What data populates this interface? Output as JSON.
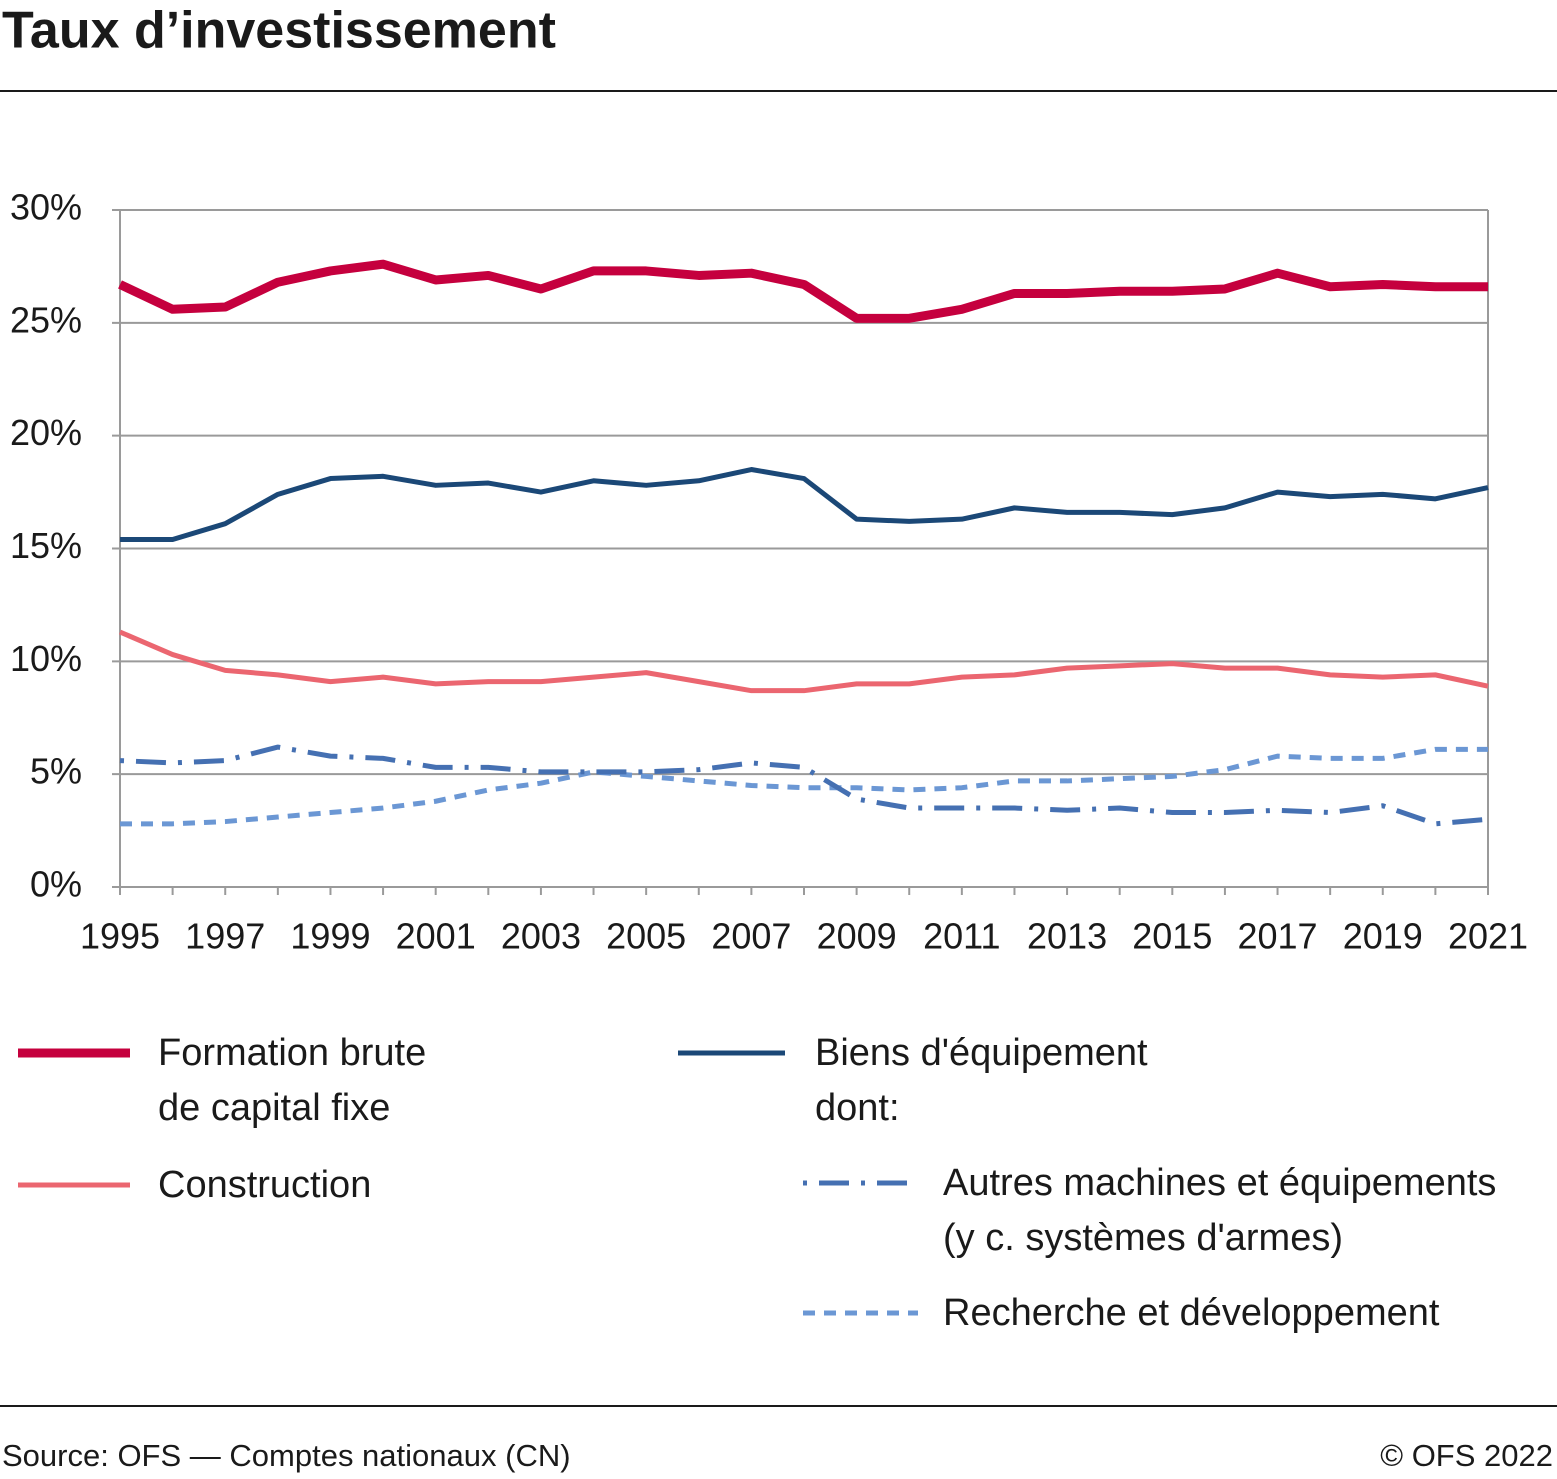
{
  "title": "Taux d’investissement",
  "source": "Source: OFS — Comptes nationaux (CN)",
  "copyright": "© OFS 2022",
  "chart_data": {
    "type": "line",
    "x": [
      1995,
      1996,
      1997,
      1998,
      1999,
      2000,
      2001,
      2002,
      2003,
      2004,
      2005,
      2006,
      2007,
      2008,
      2009,
      2010,
      2011,
      2012,
      2013,
      2014,
      2015,
      2016,
      2017,
      2018,
      2019,
      2020,
      2021
    ],
    "xlim": [
      1995,
      2021
    ],
    "xticks": [
      1995,
      1997,
      1999,
      2001,
      2003,
      2005,
      2007,
      2009,
      2011,
      2013,
      2015,
      2017,
      2019,
      2021
    ],
    "ylim": [
      0,
      30
    ],
    "yticks": [
      {
        "value": 0,
        "label": "0%"
      },
      {
        "value": 5,
        "label": "5%"
      },
      {
        "value": 10,
        "label": "10%"
      },
      {
        "value": 15,
        "label": "15%"
      },
      {
        "value": 20,
        "label": "20%"
      },
      {
        "value": 25,
        "label": "25%"
      },
      {
        "value": 30,
        "label": "30%"
      }
    ],
    "grid": true,
    "series": [
      {
        "name": "Formation brute\nde capital fixe",
        "color": "#c5003e",
        "linestyle": "solid",
        "values": [
          26.7,
          25.6,
          25.7,
          26.8,
          27.3,
          27.6,
          26.9,
          27.1,
          26.5,
          27.3,
          27.3,
          27.1,
          27.2,
          26.7,
          25.2,
          25.2,
          25.6,
          26.3,
          26.3,
          26.4,
          26.4,
          26.5,
          27.2,
          26.6,
          26.7,
          26.6,
          26.6
        ]
      },
      {
        "name": "Construction",
        "color": "#eb6670",
        "linestyle": "solid",
        "values": [
          11.3,
          10.3,
          9.6,
          9.4,
          9.1,
          9.3,
          9.0,
          9.1,
          9.1,
          9.3,
          9.5,
          9.1,
          8.7,
          8.7,
          9.0,
          9.0,
          9.3,
          9.4,
          9.7,
          9.8,
          9.9,
          9.7,
          9.7,
          9.4,
          9.3,
          9.4,
          8.9
        ]
      },
      {
        "name": "Biens d'équipement\ndont:",
        "color": "#1b4877",
        "linestyle": "solid",
        "values": [
          15.4,
          15.4,
          16.1,
          17.4,
          18.1,
          18.2,
          17.8,
          17.9,
          17.5,
          18.0,
          17.8,
          18.0,
          18.5,
          18.1,
          16.3,
          16.2,
          16.3,
          16.8,
          16.6,
          16.6,
          16.5,
          16.8,
          17.5,
          17.3,
          17.4,
          17.2,
          17.7
        ]
      },
      {
        "name": "Autres machines et équipements\n(y c. systèmes d'armes)",
        "color": "#4570b2",
        "linestyle": "dashdot",
        "values": [
          5.6,
          5.5,
          5.6,
          6.2,
          5.8,
          5.7,
          5.3,
          5.3,
          5.1,
          5.1,
          5.1,
          5.2,
          5.5,
          5.3,
          3.9,
          3.5,
          3.5,
          3.5,
          3.4,
          3.5,
          3.3,
          3.3,
          3.4,
          3.3,
          3.6,
          2.8,
          3.0
        ]
      },
      {
        "name": "Recherche et développement",
        "color": "#6b97d4",
        "linestyle": "dotted",
        "values": [
          2.8,
          2.8,
          2.9,
          3.1,
          3.3,
          3.5,
          3.8,
          4.3,
          4.6,
          5.1,
          4.9,
          4.7,
          4.5,
          4.4,
          4.4,
          4.3,
          4.4,
          4.7,
          4.7,
          4.8,
          4.9,
          5.2,
          5.8,
          5.7,
          5.7,
          6.1,
          6.1
        ]
      }
    ]
  }
}
